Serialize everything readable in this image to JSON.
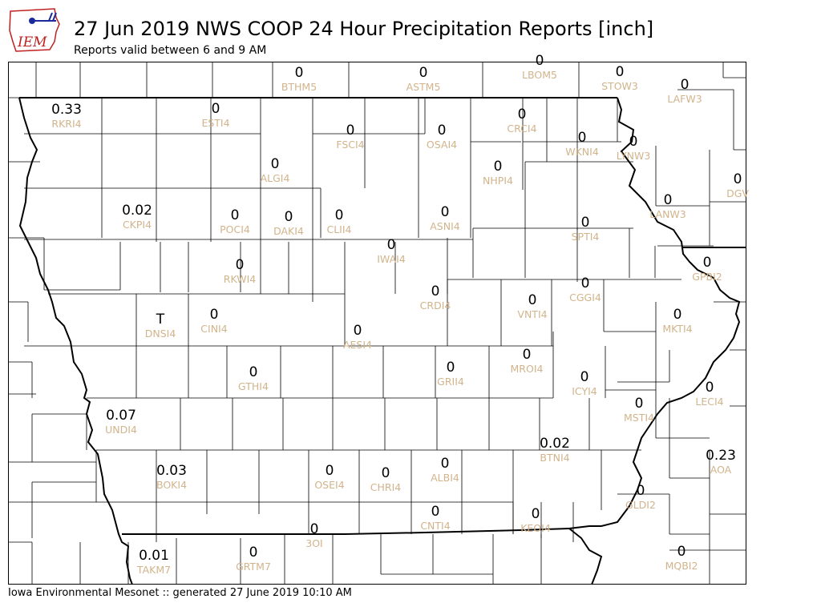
{
  "header": {
    "logo_text": "IEM",
    "title": "27 Jun 2019 NWS COOP 24 Hour Precipitation Reports [inch]",
    "subtitle": "Reports valid between 6 and 9 AM"
  },
  "footer": {
    "text": "Iowa Environmental Mesonet :: generated 27 June 2019 10:10 AM"
  },
  "colors": {
    "value_text": "#000000",
    "station_id_text": "#d2b48c",
    "county_lines": "#000000",
    "background": "#ffffff"
  },
  "stations": [
    {
      "id": "BTHM5",
      "value": "0"
    },
    {
      "id": "ASTM5",
      "value": "0"
    },
    {
      "id": "LBOM5",
      "value": "0"
    },
    {
      "id": "STOW3",
      "value": "0"
    },
    {
      "id": "LAFW3",
      "value": "0"
    },
    {
      "id": "RKRI4",
      "value": "0.33"
    },
    {
      "id": "ESTI4",
      "value": "0"
    },
    {
      "id": "FSCI4",
      "value": "0"
    },
    {
      "id": "OSAI4",
      "value": "0"
    },
    {
      "id": "CRCI4",
      "value": "0"
    },
    {
      "id": "WKNI4",
      "value": "0"
    },
    {
      "id": "LYNW3",
      "value": "0"
    },
    {
      "id": "ALGI4",
      "value": "0"
    },
    {
      "id": "NHPI4",
      "value": "0"
    },
    {
      "id": "DGV",
      "value": "0"
    },
    {
      "id": "CKPI4",
      "value": "0.02"
    },
    {
      "id": "POCI4",
      "value": "0"
    },
    {
      "id": "DAKI4",
      "value": "0"
    },
    {
      "id": "CLII4",
      "value": "0"
    },
    {
      "id": "ASNI4",
      "value": "0"
    },
    {
      "id": "LANW3",
      "value": "0"
    },
    {
      "id": "SPTI4",
      "value": "0"
    },
    {
      "id": "IWAI4",
      "value": "0"
    },
    {
      "id": "RKWI4",
      "value": "0"
    },
    {
      "id": "GPBI2",
      "value": "0"
    },
    {
      "id": "CRDI4",
      "value": "0"
    },
    {
      "id": "VNTI4",
      "value": "0"
    },
    {
      "id": "CGGI4",
      "value": "0"
    },
    {
      "id": "DNSI4",
      "value": "T"
    },
    {
      "id": "CINI4",
      "value": "0"
    },
    {
      "id": "AESI4",
      "value": "0"
    },
    {
      "id": "MKTI4",
      "value": "0"
    },
    {
      "id": "GTHI4",
      "value": "0"
    },
    {
      "id": "GRII4",
      "value": "0"
    },
    {
      "id": "MROI4",
      "value": "0"
    },
    {
      "id": "ICYI4",
      "value": "0"
    },
    {
      "id": "LECI4",
      "value": "0"
    },
    {
      "id": "MSTI4",
      "value": "0"
    },
    {
      "id": "UNDI4",
      "value": "0.07"
    },
    {
      "id": "BTNI4",
      "value": "0.02"
    },
    {
      "id": "AOA",
      "value": "0.23"
    },
    {
      "id": "BOKI4",
      "value": "0.03"
    },
    {
      "id": "OSEI4",
      "value": "0"
    },
    {
      "id": "CHRI4",
      "value": "0"
    },
    {
      "id": "ALBI4",
      "value": "0"
    },
    {
      "id": "CNTI4",
      "value": "0"
    },
    {
      "id": "KEOI4",
      "value": "0"
    },
    {
      "id": "GLDI2",
      "value": "0"
    },
    {
      "id": "3OI",
      "value": "0"
    },
    {
      "id": "TAKM7",
      "value": "0.01"
    },
    {
      "id": "GRTM7",
      "value": "0"
    },
    {
      "id": "MQBI2",
      "value": "0"
    }
  ]
}
